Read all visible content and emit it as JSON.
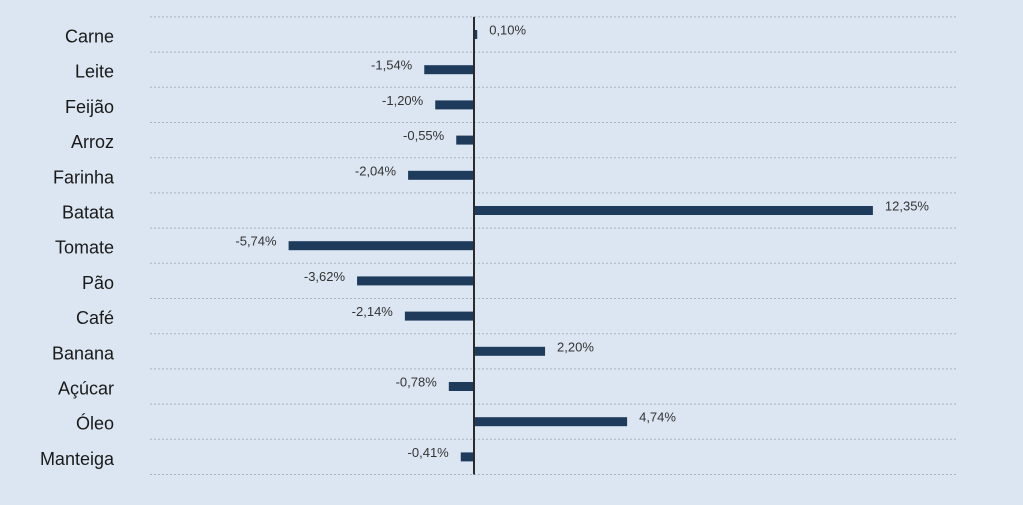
{
  "chart_data": {
    "type": "bar",
    "orientation": "horizontal",
    "categories": [
      "Carne",
      "Leite",
      "Feijão",
      "Arroz",
      "Farinha",
      "Batata",
      "Tomate",
      "Pão",
      "Café",
      "Banana",
      "Açúcar",
      "Óleo",
      "Manteiga"
    ],
    "values": [
      0.1,
      -1.54,
      -1.2,
      -0.55,
      -2.04,
      12.35,
      -5.74,
      -3.62,
      -2.14,
      2.2,
      -0.78,
      4.74,
      -0.41
    ],
    "value_labels": [
      "0,10%",
      "-1,54%",
      "-1,20%",
      "-0,55%",
      "-2,04%",
      "12,35%",
      "-5,74%",
      "-3,62%",
      "-2,14%",
      "2,20%",
      "-0,78%",
      "4,74%",
      "-0,41%"
    ],
    "xlim": [
      -10,
      15
    ],
    "title": "",
    "xlabel": "",
    "ylabel": "",
    "grid": true,
    "legend": "none",
    "colors": {
      "bar": "#1f3b5c",
      "background": "#dce6f2",
      "grid": "#a9b4c2",
      "axis": "#2b2b2b"
    }
  }
}
